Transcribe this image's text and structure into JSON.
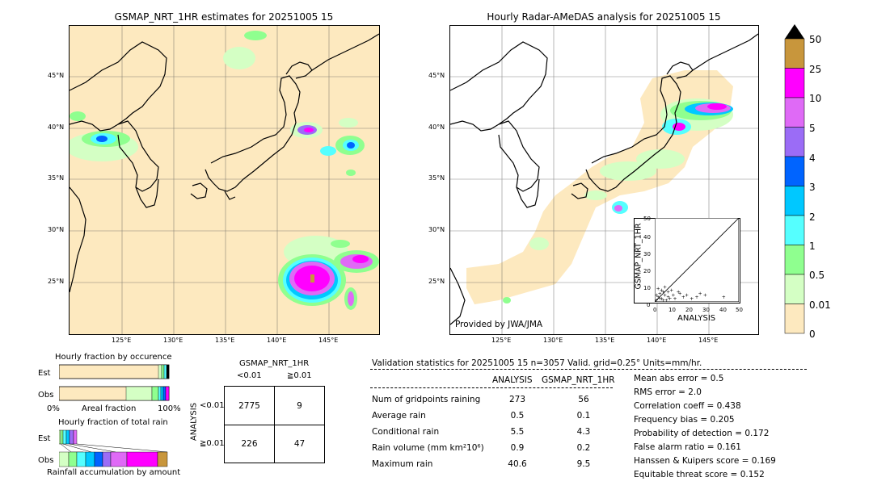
{
  "left_map": {
    "title": "GSMAP_NRT_1HR estimates for 20251005 15",
    "lat_labels": [
      "45°N",
      "40°N",
      "35°N",
      "30°N",
      "25°N"
    ],
    "lon_labels": [
      "125°E",
      "130°E",
      "135°E",
      "140°E",
      "145°E"
    ]
  },
  "right_map": {
    "title": "Hourly Radar-AMeDAS analysis for 20251005 15",
    "lat_labels": [
      "45°N",
      "40°N",
      "35°N",
      "30°N",
      "25°N"
    ],
    "lon_labels": [
      "125°E",
      "130°E",
      "135°E",
      "140°E",
      "145°E"
    ],
    "credit": "Provided by JWA/JMA"
  },
  "colorbar": {
    "labels": [
      "50",
      "25",
      "10",
      "5",
      "4",
      "3",
      "2",
      "1",
      "0.5",
      "0.01",
      "0"
    ],
    "colors": [
      "#c8963c",
      "#ff00ff",
      "#df6af6",
      "#9b6cf6",
      "#0064ff",
      "#00c8ff",
      "#55ffff",
      "#8fff8f",
      "#d4ffc4",
      "#fde9bf"
    ],
    "extend_color": "#000000"
  },
  "scatter_inset": {
    "ylabel": "GSMAP_NRT_1HR",
    "xlabel": "ANALYSIS",
    "ticks": [
      "0",
      "10",
      "20",
      "30",
      "40",
      "50"
    ]
  },
  "occurrence": {
    "title": "Hourly fraction by occurence",
    "row_labels": [
      "Est",
      "Obs"
    ],
    "axis_left": "0%",
    "axis_mid": "Areal fraction",
    "axis_right": "100%"
  },
  "total_rain": {
    "title": "Hourly fraction of total rain",
    "row_labels": [
      "Est",
      "Obs"
    ],
    "footer": "Rainfall accumulation by amount"
  },
  "contingency": {
    "header": "GSMAP_NRT_1HR",
    "col_labels": [
      "<0.01",
      "≧0.01"
    ],
    "row_axis": "ANALYSIS",
    "row_labels": [
      "<0.01",
      "≧0.01"
    ],
    "cells": [
      [
        "2775",
        "9"
      ],
      [
        "226",
        "47"
      ]
    ]
  },
  "validation": {
    "header": "Validation statistics for 20251005 15  n=3057 Valid. grid=0.25° Units=mm/hr.",
    "col_analysis": "ANALYSIS",
    "col_gsmap": "GSMAP_NRT_1HR",
    "rows": [
      {
        "label": "Num of gridpoints raining",
        "analysis": "273",
        "gsmap": "56"
      },
      {
        "label": "Average rain",
        "analysis": "0.5",
        "gsmap": "0.1"
      },
      {
        "label": "Conditional rain",
        "analysis": "5.5",
        "gsmap": "4.3"
      },
      {
        "label": "Rain volume (mm km²10⁶)",
        "analysis": "0.9",
        "gsmap": "0.2"
      },
      {
        "label": "Maximum rain",
        "analysis": "40.6",
        "gsmap": "9.5"
      }
    ],
    "scores": [
      "Mean abs error =    0.5",
      "RMS error =    2.0",
      "Correlation coeff =  0.438",
      "Frequency bias =  0.205",
      "Probability of detection =  0.172",
      "False alarm ratio =  0.161",
      "Hanssen & Kuipers score =  0.169",
      "Equitable threat score =  0.152"
    ]
  },
  "chart_data": [
    {
      "type": "scatter",
      "title": "",
      "xlabel": "ANALYSIS",
      "ylabel": "GSMAP_NRT_1HR",
      "xlim": [
        0,
        50
      ],
      "ylim": [
        0,
        50
      ],
      "x": [
        1,
        2,
        3,
        4,
        5,
        6,
        7,
        8,
        9,
        10,
        11,
        12,
        14,
        15,
        17,
        19,
        22,
        25,
        27,
        30,
        2,
        4,
        6,
        8,
        3,
        5,
        1,
        41
      ],
      "y": [
        1,
        3,
        5,
        2,
        6,
        4,
        1,
        3,
        2,
        7,
        4,
        2,
        6,
        5,
        3,
        4,
        2,
        3,
        5,
        4,
        8,
        7,
        9,
        6,
        2,
        1,
        4,
        3
      ]
    },
    {
      "type": "table",
      "title": "Validation statistics for 20251005 15  n=3057 Valid. grid=0.25° Units=mm/hr.",
      "columns": [
        "",
        "ANALYSIS",
        "GSMAP_NRT_1HR"
      ],
      "rows": [
        [
          "Num of gridpoints raining",
          273,
          56
        ],
        [
          "Average rain",
          0.5,
          0.1
        ],
        [
          "Conditional rain",
          5.5,
          4.3
        ],
        [
          "Rain volume (mm km²10⁶)",
          0.9,
          0.2
        ],
        [
          "Maximum rain",
          40.6,
          9.5
        ]
      ]
    }
  ]
}
